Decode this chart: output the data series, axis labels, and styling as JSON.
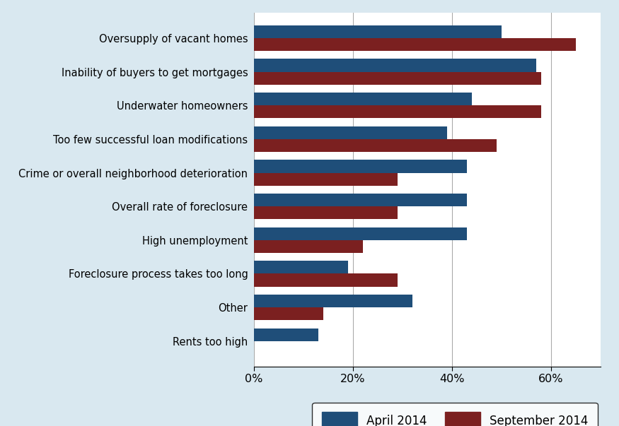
{
  "categories": [
    "Oversupply of vacant homes",
    "Inability of buyers to get mortgages",
    "Underwater homeowners",
    "Too few successful loan modifications",
    "Crime or overall neighborhood deterioration",
    "Overall rate of foreclosure",
    "High unemployment",
    "Foreclosure process takes too long",
    "Other",
    "Rents too high"
  ],
  "april_2014": [
    50,
    57,
    44,
    39,
    43,
    43,
    43,
    19,
    32,
    13
  ],
  "sept_2014": [
    65,
    58,
    58,
    49,
    29,
    29,
    22,
    29,
    14,
    -1
  ],
  "april_color": "#1F4E79",
  "sept_color": "#7B2020",
  "background_color": "#D9E8F0",
  "plot_bg_color": "#FFFFFF",
  "xlim": [
    0,
    70
  ],
  "xtick_labels": [
    "0%",
    "20%",
    "40%",
    "60%"
  ],
  "xtick_values": [
    0,
    20,
    40,
    60
  ],
  "legend_april": "April 2014",
  "legend_sept": "September 2014",
  "bar_height": 0.38
}
